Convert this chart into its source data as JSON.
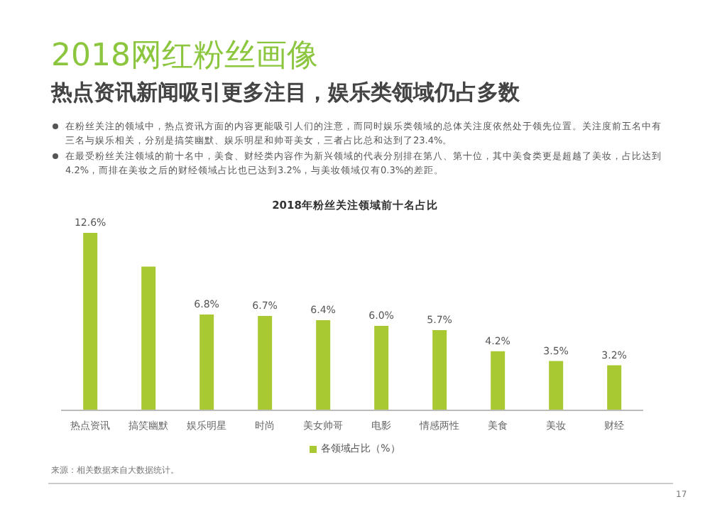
{
  "chart_data": {
    "type": "bar",
    "title": "2018网红粉丝画像",
    "subtitle": "热点资讯新闻吸引更多注目，娱乐类领域仍占多数",
    "annotations": [
      "在粉丝关注的领域中，热点资讯方面的内容更能吸引人们的注意，而同时娱乐类领域的总体关注度依然处于领先位置。关注度前五名中有三名与娱乐相关，分别是搞笑幽默、娱乐明星和帅哥美女，三者占比总和达到了23.4%。",
      "在最受粉丝关注领域的前十名中，美食、财经类内容作为新兴领域的代表分别排在第八、第十位，其中美食类更是超越了美妆，占比达到4.2%，而排在美妆之后的财经领域占比也已达到3.2%，与美妆领域仅有0.3%的差距。",
      "2018年粉丝关注领域前十名占比",
      "来源：相关数据来自大数据统计。",
      "17"
    ],
    "categories": [
      "热点资讯",
      "搞笑幽默",
      "娱乐明星",
      "时尚",
      "美女帅哥",
      "电影",
      "情感两性",
      "美食",
      "美妆",
      "财经"
    ],
    "series": [
      {
        "name": "各领域占比（%）",
        "color": "#a9c932",
        "values": [
          12.6,
          10.2,
          6.8,
          6.7,
          6.4,
          6.0,
          5.7,
          4.2,
          3.5,
          3.2
        ],
        "value_labels": [
          "12.6%",
          null,
          "6.8%",
          "6.7%",
          "6.4%",
          "6.0%",
          "5.7%",
          "4.2%",
          "3.5%",
          "3.2%"
        ]
      }
    ],
    "legend": "bottom"
  }
}
